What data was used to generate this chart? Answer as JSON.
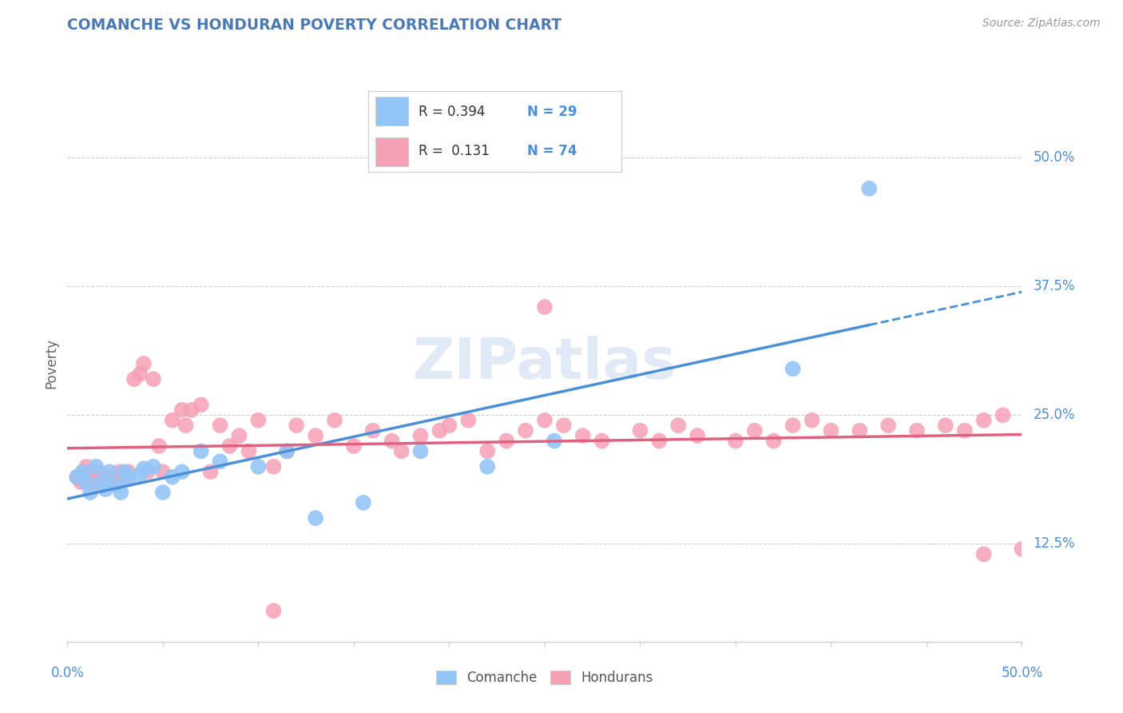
{
  "title": "COMANCHE VS HONDURAN POVERTY CORRELATION CHART",
  "source": "Source: ZipAtlas.com",
  "ylabel": "Poverty",
  "ytick_labels": [
    "12.5%",
    "25.0%",
    "37.5%",
    "50.0%"
  ],
  "ytick_values": [
    0.125,
    0.25,
    0.375,
    0.5
  ],
  "xmin": 0.0,
  "xmax": 0.5,
  "ymin": 0.03,
  "ymax": 0.57,
  "comanche_R": 0.394,
  "comanche_N": 29,
  "honduran_R": 0.131,
  "honduran_N": 74,
  "comanche_color": "#92c5f7",
  "honduran_color": "#f5a0b5",
  "comanche_line_color": "#4a90d9",
  "honduran_line_color": "#e06080",
  "label_color": "#4a90d9",
  "title_color": "#4a7ab5",
  "watermark_color": "#c8d8ee",
  "comanche_x": [
    0.005,
    0.008,
    0.01,
    0.012,
    0.015,
    0.018,
    0.02,
    0.022,
    0.025,
    0.028,
    0.03,
    0.032,
    0.038,
    0.04,
    0.045,
    0.05,
    0.055,
    0.06,
    0.07,
    0.08,
    0.1,
    0.115,
    0.13,
    0.155,
    0.185,
    0.22,
    0.255,
    0.38,
    0.42
  ],
  "comanche_y": [
    0.19,
    0.195,
    0.185,
    0.175,
    0.2,
    0.185,
    0.178,
    0.195,
    0.182,
    0.175,
    0.195,
    0.188,
    0.192,
    0.198,
    0.2,
    0.175,
    0.19,
    0.195,
    0.215,
    0.205,
    0.2,
    0.215,
    0.15,
    0.165,
    0.215,
    0.2,
    0.225,
    0.295,
    0.47
  ],
  "honduran_x": [
    0.005,
    0.007,
    0.01,
    0.012,
    0.013,
    0.015,
    0.016,
    0.018,
    0.02,
    0.022,
    0.025,
    0.027,
    0.028,
    0.03,
    0.032,
    0.035,
    0.038,
    0.04,
    0.042,
    0.045,
    0.048,
    0.05,
    0.055,
    0.06,
    0.062,
    0.065,
    0.07,
    0.075,
    0.08,
    0.085,
    0.09,
    0.095,
    0.1,
    0.108,
    0.115,
    0.12,
    0.13,
    0.14,
    0.15,
    0.16,
    0.17,
    0.175,
    0.185,
    0.195,
    0.2,
    0.21,
    0.22,
    0.23,
    0.24,
    0.25,
    0.26,
    0.27,
    0.28,
    0.3,
    0.31,
    0.32,
    0.33,
    0.35,
    0.36,
    0.37,
    0.38,
    0.39,
    0.4,
    0.415,
    0.43,
    0.445,
    0.46,
    0.47,
    0.48,
    0.49,
    0.5,
    0.108,
    0.25,
    0.48
  ],
  "honduran_y": [
    0.19,
    0.185,
    0.2,
    0.185,
    0.195,
    0.185,
    0.195,
    0.182,
    0.19,
    0.188,
    0.185,
    0.195,
    0.192,
    0.188,
    0.195,
    0.285,
    0.29,
    0.3,
    0.195,
    0.285,
    0.22,
    0.195,
    0.245,
    0.255,
    0.24,
    0.255,
    0.26,
    0.195,
    0.24,
    0.22,
    0.23,
    0.215,
    0.245,
    0.2,
    0.215,
    0.24,
    0.23,
    0.245,
    0.22,
    0.235,
    0.225,
    0.215,
    0.23,
    0.235,
    0.24,
    0.245,
    0.215,
    0.225,
    0.235,
    0.245,
    0.24,
    0.23,
    0.225,
    0.235,
    0.225,
    0.24,
    0.23,
    0.225,
    0.235,
    0.225,
    0.24,
    0.245,
    0.235,
    0.235,
    0.24,
    0.235,
    0.24,
    0.235,
    0.245,
    0.25,
    0.12,
    0.06,
    0.355,
    0.115
  ]
}
